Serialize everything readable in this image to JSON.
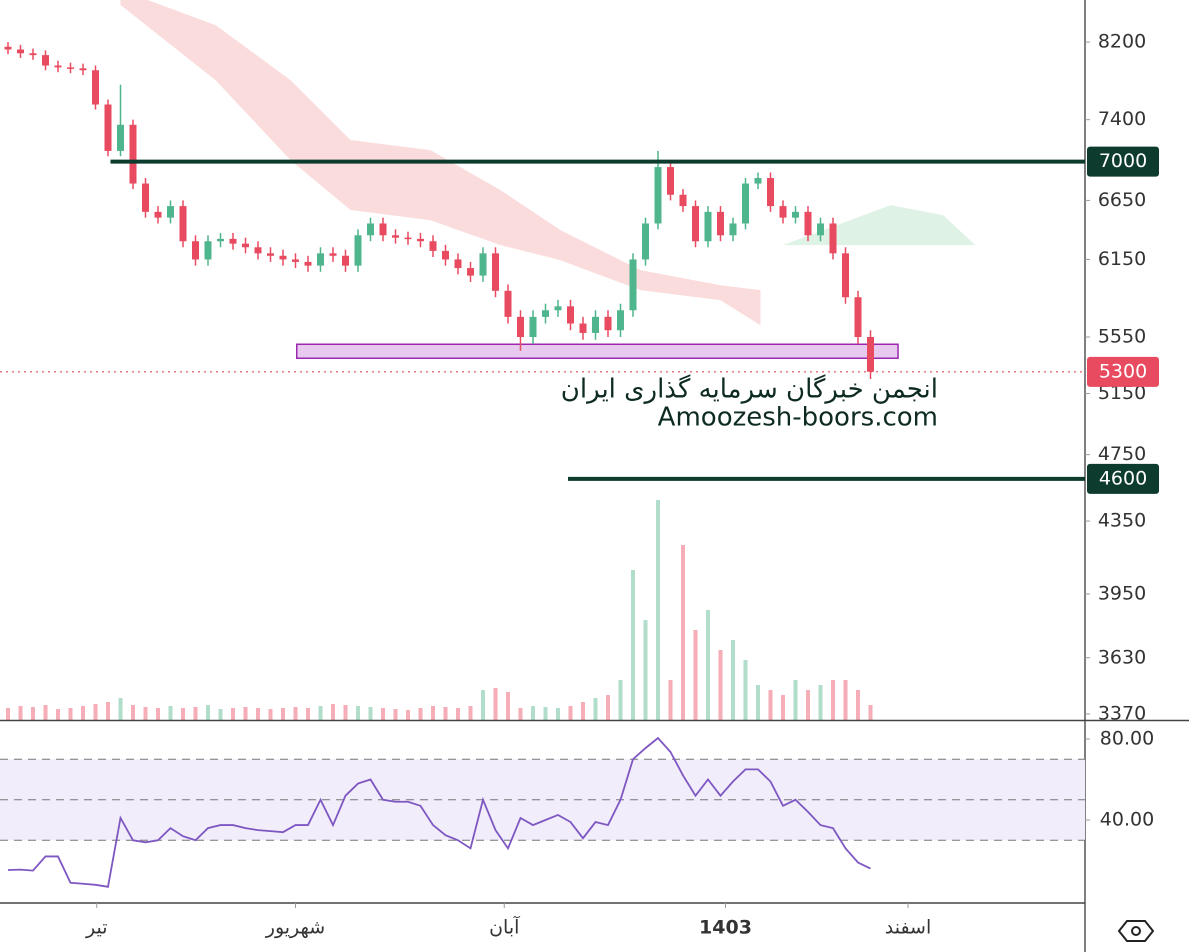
{
  "chart_data": {
    "type": "candlestick",
    "log_scale": true,
    "xlim": [
      -0.64,
      86.16
    ],
    "ylim": [
      3343,
      8670
    ],
    "yticks": [
      3370,
      3630,
      3950,
      4350,
      4750,
      5150,
      5550,
      6150,
      6650,
      7400,
      8200
    ],
    "xticks": [
      {
        "value": 7.1,
        "label": "تیر"
      },
      {
        "value": 23.0,
        "label": "شهریور"
      },
      {
        "value": 39.7,
        "label": "آبان"
      },
      {
        "value": 57.4,
        "label": "1403"
      },
      {
        "value": 72.0,
        "label": "اسفند"
      }
    ],
    "up_color": "#4fb58c",
    "down_color": "#e84a5f",
    "open": [
      8150,
      8120,
      8080,
      8060,
      7950,
      7930,
      7920,
      7900,
      7550,
      7100,
      7350,
      6800,
      6550,
      6500,
      6600,
      6300,
      6150,
      6300,
      6320,
      6280,
      6250,
      6200,
      6180,
      6150,
      6130,
      6100,
      6200,
      6180,
      6100,
      6350,
      6450,
      6350,
      6330,
      6320,
      6300,
      6220,
      6150,
      6080,
      6020,
      6200,
      5900,
      5700,
      5550,
      5700,
      5750,
      5780,
      5650,
      5580,
      5700,
      5600,
      5750,
      6150,
      6450,
      6950,
      6700,
      6600,
      6300,
      6550,
      6350,
      6450,
      6800,
      6850,
      6600,
      6500,
      6550,
      6350,
      6450,
      6200,
      5850,
      5550
    ],
    "high": [
      8200,
      8170,
      8130,
      8110,
      8000,
      7980,
      7970,
      7950,
      7600,
      7750,
      7400,
      6850,
      6600,
      6650,
      6650,
      6350,
      6350,
      6370,
      6370,
      6330,
      6300,
      6250,
      6230,
      6200,
      6180,
      6250,
      6250,
      6230,
      6400,
      6500,
      6500,
      6400,
      6380,
      6370,
      6350,
      6270,
      6200,
      6130,
      6250,
      6250,
      5950,
      5750,
      5750,
      5800,
      5830,
      5830,
      5700,
      5750,
      5750,
      5800,
      6200,
      6500,
      7100,
      7000,
      6750,
      6650,
      6600,
      6600,
      6500,
      6850,
      6900,
      6900,
      6650,
      6600,
      6600,
      6500,
      6500,
      6250,
      5900,
      5600
    ],
    "low": [
      8070,
      8030,
      8010,
      7900,
      7880,
      7870,
      7850,
      7500,
      7050,
      7050,
      6750,
      6500,
      6450,
      6450,
      6250,
      6100,
      6100,
      6250,
      6230,
      6200,
      6150,
      6130,
      6100,
      6080,
      6050,
      6050,
      6130,
      6050,
      6050,
      6300,
      6300,
      6280,
      6270,
      6250,
      6170,
      6100,
      6030,
      5970,
      5970,
      5850,
      5650,
      5450,
      5500,
      5650,
      5700,
      5600,
      5530,
      5530,
      5550,
      5550,
      5700,
      6100,
      6400,
      6650,
      6550,
      6250,
      6250,
      6300,
      6300,
      6400,
      6750,
      6550,
      6450,
      6450,
      6300,
      6300,
      6150,
      5800,
      5500,
      5250
    ],
    "close": [
      8120,
      8080,
      8060,
      7950,
      7930,
      7920,
      7900,
      7550,
      7100,
      7350,
      6800,
      6550,
      6500,
      6600,
      6300,
      6150,
      6300,
      6320,
      6280,
      6250,
      6200,
      6180,
      6150,
      6130,
      6100,
      6200,
      6180,
      6100,
      6350,
      6450,
      6350,
      6330,
      6320,
      6300,
      6220,
      6150,
      6080,
      6020,
      6200,
      5900,
      5700,
      5550,
      5700,
      5750,
      5780,
      5650,
      5580,
      5700,
      5600,
      5750,
      6150,
      6450,
      6950,
      6700,
      6600,
      6300,
      6550,
      6350,
      6450,
      6800,
      6850,
      6600,
      6500,
      6550,
      6350,
      6450,
      6200,
      5850,
      5550,
      5300
    ],
    "volume": [
      12,
      14,
      13,
      15,
      11,
      12,
      14,
      16,
      18,
      22,
      15,
      13,
      12,
      14,
      12,
      13,
      15,
      11,
      12,
      13,
      12,
      11,
      12,
      13,
      12,
      14,
      16,
      15,
      14,
      13,
      12,
      11,
      10,
      12,
      14,
      13,
      12,
      14,
      30,
      32,
      28,
      12,
      14,
      13,
      12,
      14,
      18,
      22,
      25,
      40,
      150,
      100,
      220,
      40,
      175,
      90,
      110,
      70,
      80,
      60,
      35,
      30,
      25,
      40,
      30,
      35,
      40,
      40,
      30,
      15
    ],
    "rsi": [
      15.3,
      15.5,
      15,
      22,
      22,
      9,
      8.5,
      8,
      7,
      41,
      30,
      29,
      30,
      36,
      32,
      30,
      36,
      37.5,
      37.5,
      36,
      35,
      34.5,
      34,
      37.5,
      37.5,
      50,
      37.5,
      52,
      58,
      60,
      50,
      49,
      49,
      47,
      37.5,
      32.5,
      30,
      26,
      50,
      35,
      26,
      41,
      37.5,
      40,
      42.5,
      39,
      31,
      39,
      37.5,
      50,
      70,
      75.5,
      80.5,
      73.6,
      62,
      52,
      60,
      52,
      59,
      65,
      65,
      59,
      47,
      50,
      44,
      37.5,
      36,
      26,
      19,
      16
    ],
    "rsi_ylim": [
      0,
      88.4
    ],
    "rsi_yticks": [
      {
        "value": 80,
        "label": "80.00"
      },
      {
        "value": 40,
        "label": "40.00"
      }
    ],
    "rsi_levels": [
      30,
      50,
      70
    ],
    "rsi_color": "#7e57c2",
    "clouds": [
      {
        "color": "#fbdcdc",
        "x": [
          9,
          16.6,
          22.6,
          27.4,
          33.8,
          39.4,
          44.2,
          50.6,
          57,
          60.2
        ],
        "upper": [
          8786,
          8387,
          7798,
          7203,
          7108,
          6741,
          6393,
          6064,
          5944,
          5905
        ],
        "lower": [
          8613,
          7798,
          7014,
          6566,
          6478,
          6268,
          6144,
          5905,
          5827,
          5637
        ]
      },
      {
        "color": "#dff2e6",
        "x": [
          62,
          70.6,
          74.8,
          77.4
        ],
        "upper": [
          6268,
          6608,
          6522,
          6268
        ],
        "lower": [
          6268,
          6268,
          6268,
          6268
        ]
      }
    ],
    "levels": [
      {
        "value": 7000,
        "start": 8.2
      },
      {
        "value": 4600,
        "start": 44.8
      }
    ],
    "level_color": "#0d3b2e",
    "zone": {
      "low": 5396,
      "high": 5497,
      "start": 23.1,
      "end": 71.2
    },
    "last_price": 5300,
    "annotations": [
      "انجمن خبرگان سرمایه گذاری ایران",
      "Amoozesh-boors.com"
    ]
  }
}
